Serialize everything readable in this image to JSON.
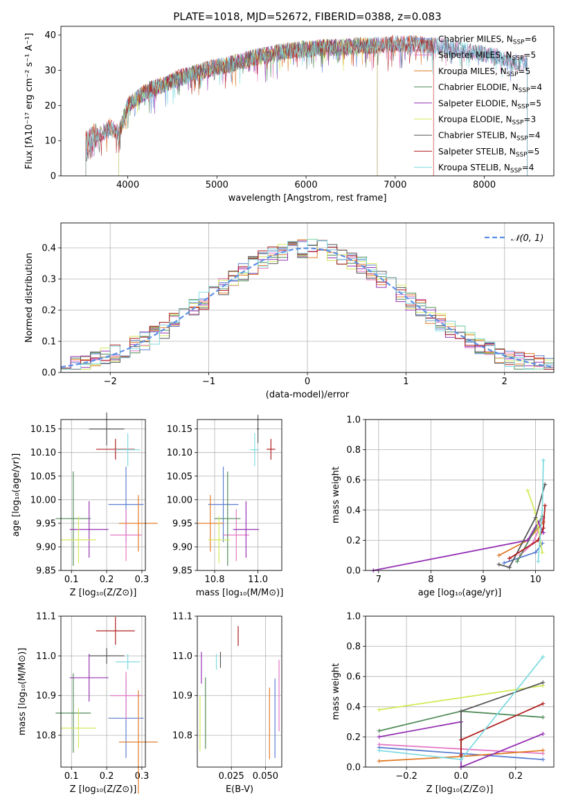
{
  "title": "PLATE=1018, MJD=52672, FIBERID=0388, z=0.083",
  "colors": {
    "Chabrier MILES": "#5b7fd0",
    "Salpeter MILES": "#e377c2",
    "Kroupa MILES": "#e07b28",
    "Chabrier ELODIE": "#4e8a57",
    "Salpeter ELODIE": "#9430b2",
    "Kroupa ELODIE": "#d4e85a",
    "Chabrier STELIB": "#555555",
    "Salpeter STELIB": "#b01c1c",
    "Kroupa STELIB": "#7fdbe0",
    "normal_curve": "#5b8ee6",
    "grid": "#b0b0b0"
  },
  "chart_data": [
    {
      "id": "spectrum",
      "type": "line",
      "xlabel": "wavelength [Angstrom, rest frame]",
      "ylabel": "Flux [fλ10⁻¹⁷ erg cm⁻² s⁻¹ A⁻¹]",
      "xlim": [
        3250,
        8780
      ],
      "ylim": [
        0,
        42.5
      ],
      "xticks": [
        "4000",
        "5000",
        "6000",
        "7000",
        "8000"
      ],
      "yticks": [
        "0",
        "10",
        "20",
        "30",
        "40"
      ],
      "grid": false,
      "legend_position": "top-right",
      "legend": [
        "Chabrier MILES, N_SSP=6",
        "Salpeter MILES, N_SSP=5",
        "Kroupa MILES, N_SSP=5",
        "Chabrier ELODIE, N_SSP=4",
        "Salpeter ELODIE, N_SSP=5",
        "Kroupa ELODIE, N_SSP=3",
        "Chabrier STELIB, N_SSP=4",
        "Salpeter STELIB, N_SSP=5",
        "Kroupa STELIB, N_SSP=4"
      ],
      "continuum": {
        "wavelength": [
          3550,
          3600,
          3700,
          3800,
          3900,
          4000,
          4100,
          4200,
          4300,
          4400,
          4500,
          4600,
          4800,
          5000,
          5200,
          5400,
          5600,
          5800,
          6000,
          6200,
          6400,
          6600,
          6800,
          7000,
          7200,
          7400,
          7600,
          7800,
          8000,
          8200,
          8400
        ],
        "flux": [
          8,
          10,
          12,
          14,
          12,
          20,
          22,
          24,
          25,
          26,
          27,
          28,
          29.5,
          31,
          32,
          33.5,
          34.5,
          35.5,
          36,
          36.5,
          36.5,
          37,
          37,
          37.5,
          37.5,
          37,
          36.5,
          35.5,
          34.5,
          33.5,
          32
        ]
      },
      "series": [
        {
          "key": "Chabrier MILES",
          "start": 3530,
          "end": 8480
        },
        {
          "key": "Salpeter MILES",
          "start": 3530,
          "end": 8480
        },
        {
          "key": "Kroupa MILES",
          "start": 3530,
          "end": 7430
        },
        {
          "key": "Chabrier ELODIE",
          "start": 3900,
          "end": 6800
        },
        {
          "key": "Salpeter ELODIE",
          "start": 3900,
          "end": 6800
        },
        {
          "key": "Kroupa ELODIE",
          "start": 3900,
          "end": 6800
        },
        {
          "key": "Chabrier STELIB",
          "start": 3530,
          "end": 8480
        },
        {
          "key": "Salpeter STELIB",
          "start": 3530,
          "end": 7430
        },
        {
          "key": "Kroupa STELIB",
          "start": 3530,
          "end": 8480
        }
      ]
    },
    {
      "id": "residuals",
      "type": "histogram",
      "xlabel": "(data-model)/error",
      "ylabel": "Normed distribution",
      "xlim": [
        -2.5,
        2.5
      ],
      "ylim": [
        0,
        0.48
      ],
      "xticks": [
        "−2",
        "−1",
        "0",
        "1",
        "2"
      ],
      "yticks": [
        "0.0",
        "0.1",
        "0.2",
        "0.3",
        "0.4"
      ],
      "grid": true,
      "legend_position": "top-right",
      "legend": [
        "𝒩(0, 1)"
      ],
      "bin_width": 0.1,
      "series_order": [
        "Chabrier MILES",
        "Salpeter MILES",
        "Kroupa MILES",
        "Chabrier ELODIE",
        "Salpeter ELODIE",
        "Kroupa ELODIE",
        "Chabrier STELIB",
        "Salpeter STELIB",
        "Kroupa STELIB"
      ]
    },
    {
      "id": "age_vs_Z",
      "type": "errorbar",
      "xlabel": "Z [log₁₀(Z/Z⊙)]",
      "ylabel": "age  [log₁₀(age/yr)]",
      "xlim": [
        0.07,
        0.31
      ],
      "ylim": [
        9.85,
        10.17
      ],
      "xticks": [
        "0.1",
        "0.2",
        "0.3"
      ],
      "yticks": [
        "9.85",
        "9.90",
        "9.95",
        "10.00",
        "10.05",
        "10.10",
        "10.15"
      ],
      "grid": true,
      "points": [
        {
          "key": "Chabrier MILES",
          "x": 0.255,
          "xerr": 0.05,
          "y": 9.99,
          "yerr": 0.08
        },
        {
          "key": "Salpeter MILES",
          "x": 0.255,
          "xerr": 0.045,
          "y": 9.925,
          "yerr": 0.055
        },
        {
          "key": "Kroupa MILES",
          "x": 0.29,
          "xerr": 0.055,
          "y": 9.95,
          "yerr": 0.06
        },
        {
          "key": "Chabrier ELODIE",
          "x": 0.105,
          "xerr": 0.05,
          "y": 9.96,
          "yerr": 0.1
        },
        {
          "key": "Salpeter ELODIE",
          "x": 0.15,
          "xerr": 0.055,
          "y": 9.937,
          "yerr": 0.06
        },
        {
          "key": "Kroupa ELODIE",
          "x": 0.12,
          "xerr": 0.05,
          "y": 9.915,
          "yerr": 0.05
        },
        {
          "key": "Chabrier STELIB",
          "x": 0.2,
          "xerr": 0.05,
          "y": 10.15,
          "yerr": 0.035
        },
        {
          "key": "Salpeter STELIB",
          "x": 0.225,
          "xerr": 0.055,
          "y": 10.107,
          "yerr": 0.022
        },
        {
          "key": "Kroupa STELIB",
          "x": 0.26,
          "xerr": 0.035,
          "y": 10.106,
          "yerr": 0.035
        }
      ]
    },
    {
      "id": "age_vs_mass",
      "type": "errorbar",
      "xlabel": "mass [log₁₀(M/M⊙)]",
      "ylabel": "",
      "xlim": [
        10.72,
        11.11
      ],
      "ylim": [
        9.85,
        10.17
      ],
      "xticks": [
        "10.8",
        "11.0"
      ],
      "yticks": [
        "9.85",
        "9.90",
        "9.95",
        "10.00",
        "10.05",
        "10.10",
        "10.15"
      ],
      "grid": true,
      "points": [
        {
          "key": "Chabrier MILES",
          "x": 10.84,
          "xerr": 0.07,
          "y": 9.99,
          "yerr": 0.08
        },
        {
          "key": "Salpeter MILES",
          "x": 10.9,
          "xerr": 0.06,
          "y": 9.925,
          "yerr": 0.055
        },
        {
          "key": "Kroupa MILES",
          "x": 10.78,
          "xerr": 0.06,
          "y": 9.95,
          "yerr": 0.06
        },
        {
          "key": "Chabrier ELODIE",
          "x": 10.86,
          "xerr": 0.06,
          "y": 9.96,
          "yerr": 0.1
        },
        {
          "key": "Salpeter ELODIE",
          "x": 10.945,
          "xerr": 0.06,
          "y": 9.937,
          "yerr": 0.06
        },
        {
          "key": "Kroupa ELODIE",
          "x": 10.82,
          "xerr": 0.05,
          "y": 9.915,
          "yerr": 0.05
        },
        {
          "key": "Chabrier STELIB",
          "x": 11.0,
          "xerr": 0.005,
          "y": 10.15,
          "yerr": 0.03
        },
        {
          "key": "Salpeter STELIB",
          "x": 11.06,
          "xerr": 0.02,
          "y": 10.107,
          "yerr": 0.022
        },
        {
          "key": "Kroupa STELIB",
          "x": 10.985,
          "xerr": 0.02,
          "y": 10.106,
          "yerr": 0.035
        }
      ]
    },
    {
      "id": "mass_weight_vs_age",
      "type": "line",
      "xlabel": "age  [log₁₀(age/yr)]",
      "ylabel": "mass weight",
      "xlim": [
        6.75,
        10.35
      ],
      "ylim": [
        0,
        1
      ],
      "xticks": [
        "7",
        "8",
        "9",
        "10"
      ],
      "yticks": [
        "0.0",
        "0.2",
        "0.4",
        "0.6",
        "0.8",
        "1.0"
      ],
      "grid": true,
      "series": [
        {
          "key": "Chabrier MILES",
          "x": [
            9.4,
            10.0,
            10.13
          ],
          "y": [
            0.05,
            0.12,
            0.18
          ]
        },
        {
          "key": "Salpeter MILES",
          "x": [
            9.7,
            9.95,
            10.15
          ],
          "y": [
            0.1,
            0.18,
            0.35
          ]
        },
        {
          "key": "Kroupa MILES",
          "x": [
            9.3,
            9.85,
            10.15
          ],
          "y": [
            0.1,
            0.2,
            0.32
          ]
        },
        {
          "key": "Chabrier ELODIE",
          "x": [
            9.65,
            10.0,
            10.13
          ],
          "y": [
            0.06,
            0.28,
            0.36
          ]
        },
        {
          "key": "Salpeter ELODIE",
          "x": [
            6.9,
            9.85,
            10.05,
            10.15
          ],
          "y": [
            0.0,
            0.2,
            0.32,
            0.25
          ]
        },
        {
          "key": "Kroupa ELODIE",
          "x": [
            9.85,
            10.0,
            10.13
          ],
          "y": [
            0.53,
            0.38,
            0.12
          ]
        },
        {
          "key": "Chabrier STELIB",
          "x": [
            9.3,
            9.5,
            10.0,
            10.18
          ],
          "y": [
            0.04,
            0.02,
            0.35,
            0.57
          ]
        },
        {
          "key": "Salpeter STELIB",
          "x": [
            9.5,
            10.05,
            10.15,
            10.18
          ],
          "y": [
            0.08,
            0.2,
            0.28,
            0.43
          ]
        },
        {
          "key": "Kroupa STELIB",
          "x": [
            10.05,
            10.13,
            10.15
          ],
          "y": [
            0.06,
            0.4,
            0.73
          ]
        }
      ]
    },
    {
      "id": "mass_vs_Z",
      "type": "errorbar",
      "xlabel": "Z [log₁₀(Z/Z⊙)]",
      "ylabel": "mass [log₁₀(M/M⊙)]",
      "xlim": [
        0.07,
        0.31
      ],
      "ylim": [
        10.72,
        11.1
      ],
      "xticks": [
        "0.1",
        "0.2",
        "0.3"
      ],
      "yticks": [
        "10.8",
        "10.9",
        "11.0",
        "11.1"
      ],
      "grid": true,
      "points": [
        {
          "key": "Chabrier MILES",
          "x": 0.255,
          "xerr": 0.05,
          "y": 10.843,
          "yerr": 0.1
        },
        {
          "key": "Salpeter MILES",
          "x": 0.255,
          "xerr": 0.045,
          "y": 10.9,
          "yerr": 0.06
        },
        {
          "key": "Kroupa MILES",
          "x": 0.29,
          "xerr": 0.055,
          "y": 10.783,
          "yerr": 0.13
        },
        {
          "key": "Chabrier ELODIE",
          "x": 0.105,
          "xerr": 0.05,
          "y": 10.856,
          "yerr": 0.1
        },
        {
          "key": "Salpeter ELODIE",
          "x": 0.15,
          "xerr": 0.055,
          "y": 10.945,
          "yerr": 0.06
        },
        {
          "key": "Kroupa ELODIE",
          "x": 0.12,
          "xerr": 0.05,
          "y": 10.818,
          "yerr": 0.05
        },
        {
          "key": "Chabrier STELIB",
          "x": 0.2,
          "xerr": 0.05,
          "y": 11.0,
          "yerr": 0.02
        },
        {
          "key": "Salpeter STELIB",
          "x": 0.225,
          "xerr": 0.055,
          "y": 11.063,
          "yerr": 0.035
        },
        {
          "key": "Kroupa STELIB",
          "x": 0.26,
          "xerr": 0.035,
          "y": 10.985,
          "yerr": 0.02
        }
      ]
    },
    {
      "id": "mass_vs_ebv",
      "type": "errorbar",
      "xlabel": "E(B-V)",
      "ylabel": "",
      "xlim": [
        0.0,
        0.062
      ],
      "ylim": [
        10.72,
        11.1
      ],
      "xticks": [
        "0.025",
        "0.050"
      ],
      "yticks": [
        "10.8",
        "10.9",
        "11.0",
        "11.1"
      ],
      "grid": true,
      "points": [
        {
          "key": "Chabrier MILES",
          "x": 0.057,
          "y": 10.843,
          "yerr": 0.1
        },
        {
          "key": "Salpeter MILES",
          "x": 0.06,
          "y": 10.9,
          "yerr": 0.09
        },
        {
          "key": "Kroupa MILES",
          "x": 0.053,
          "y": 10.83,
          "yerr": 0.09
        },
        {
          "key": "Chabrier ELODIE",
          "x": 0.006,
          "y": 10.856,
          "yerr": 0.09
        },
        {
          "key": "Salpeter ELODIE",
          "x": 0.003,
          "y": 10.97,
          "yerr": 0.04
        },
        {
          "key": "Kroupa ELODIE",
          "x": 0.002,
          "y": 10.83,
          "yerr": 0.07
        },
        {
          "key": "Chabrier STELIB",
          "x": 0.017,
          "y": 10.99,
          "yerr": 0.02
        },
        {
          "key": "Salpeter STELIB",
          "x": 0.03,
          "y": 11.05,
          "yerr": 0.025
        },
        {
          "key": "Kroupa STELIB",
          "x": 0.014,
          "y": 10.985,
          "yerr": 0.02
        }
      ]
    },
    {
      "id": "mass_weight_vs_Z",
      "type": "line",
      "xlabel": "Z [log₁₀(Z/Z⊙)]",
      "ylabel": "mass weight",
      "xlim": [
        -0.35,
        0.34
      ],
      "ylim": [
        0,
        1
      ],
      "xticks": [
        "−0.2",
        "0.0",
        "0.2"
      ],
      "yticks": [
        "0.0",
        "0.2",
        "0.4",
        "0.6",
        "0.8",
        "1.0"
      ],
      "grid": true,
      "series": [
        {
          "key": "Chabrier MILES",
          "x": [
            -0.3,
            0.0,
            0.3
          ],
          "y": [
            0.13,
            0.09,
            0.05
          ]
        },
        {
          "key": "Salpeter MILES",
          "x": [
            -0.3,
            0.0,
            0.3
          ],
          "y": [
            0.15,
            0.12,
            0.09
          ]
        },
        {
          "key": "Kroupa MILES",
          "x": [
            -0.3,
            0.0,
            0.3
          ],
          "y": [
            0.04,
            0.07,
            0.11
          ]
        },
        {
          "key": "Chabrier ELODIE",
          "x": [
            -0.3,
            0.0,
            0.3
          ],
          "y": [
            0.24,
            0.37,
            0.33
          ]
        },
        {
          "key": "Salpeter ELODIE",
          "x": [
            -0.3,
            0.0,
            0.0,
            0.3
          ],
          "y": [
            0.2,
            0.3,
            0.0,
            0.22
          ]
        },
        {
          "key": "Kroupa ELODIE",
          "x": [
            -0.3,
            0.3
          ],
          "y": [
            0.38,
            0.54
          ]
        },
        {
          "key": "Chabrier STELIB",
          "x": [
            0.0,
            0.0,
            0.3
          ],
          "y": [
            0.05,
            0.37,
            0.56
          ]
        },
        {
          "key": "Salpeter STELIB",
          "x": [
            0.0,
            0.0,
            0.3
          ],
          "y": [
            0.08,
            0.18,
            0.42
          ]
        },
        {
          "key": "Kroupa STELIB",
          "x": [
            -0.3,
            0.0,
            0.3
          ],
          "y": [
            0.11,
            0.05,
            0.73
          ]
        }
      ]
    }
  ]
}
